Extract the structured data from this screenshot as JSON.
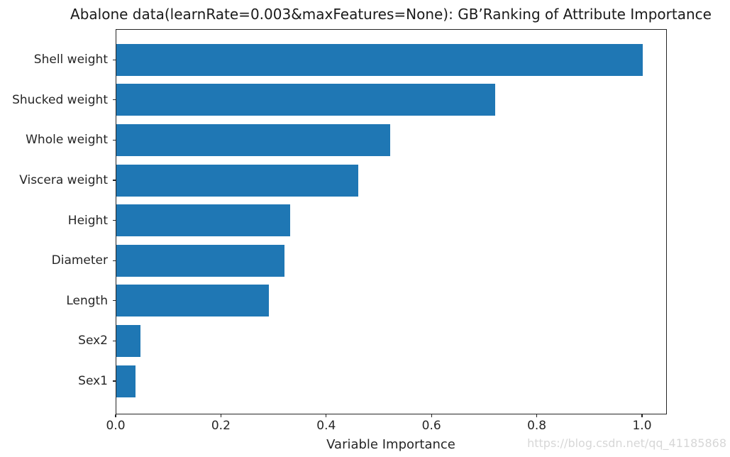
{
  "watermark": "https://blog.csdn.net/qq_41185868",
  "chart_data": {
    "type": "bar",
    "orientation": "horizontal",
    "title": "Abalone data(learnRate=0.003&maxFeatures=None): GB’Ranking of Attribute Importance",
    "xlabel": "Variable Importance",
    "ylabel": "",
    "categories": [
      "Shell weight",
      "Shucked weight",
      "Whole weight",
      "Viscera weight",
      "Height",
      "Diameter",
      "Length",
      "Sex2",
      "Sex1"
    ],
    "values": [
      1.0,
      0.72,
      0.52,
      0.46,
      0.33,
      0.32,
      0.29,
      0.046,
      0.036
    ],
    "xlim": [
      0,
      1.05
    ],
    "x_ticks": [
      0.0,
      0.2,
      0.4,
      0.6,
      0.8,
      1.0
    ],
    "x_tick_labels": [
      "0.0",
      "0.2",
      "0.4",
      "0.6",
      "0.8",
      "1.0"
    ],
    "bar_color": "#1f77b4",
    "grid": false,
    "legend": "none",
    "background": "#ffffff"
  }
}
